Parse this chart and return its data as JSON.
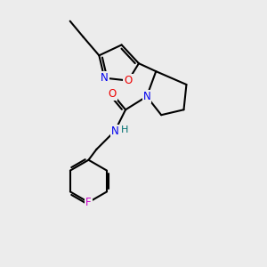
{
  "background_color": "#ececec",
  "bond_color": "#000000",
  "atom_colors": {
    "N": "#0000ee",
    "O": "#ee0000",
    "F": "#cc00cc",
    "H": "#007070",
    "C": "#000000"
  },
  "figsize": [
    3.0,
    3.0
  ],
  "dpi": 100,
  "bond_lw": 1.5,
  "font_size": 8.5,
  "xlim": [
    0,
    10
  ],
  "ylim": [
    0,
    10
  ]
}
